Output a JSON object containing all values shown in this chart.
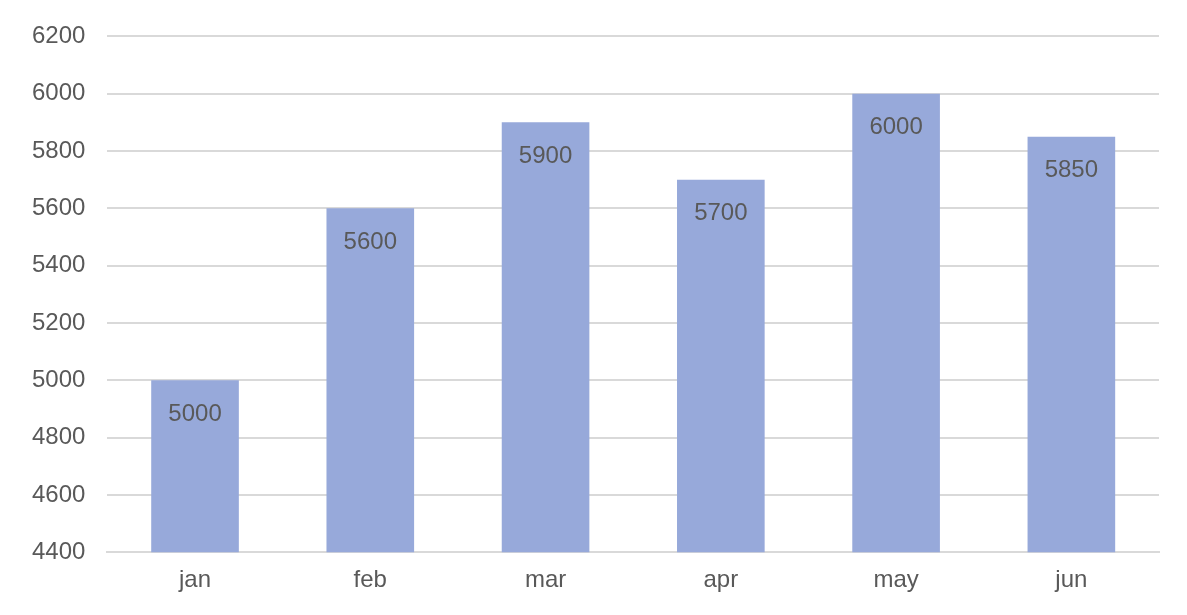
{
  "chart_data": {
    "type": "bar",
    "categories": [
      "jan",
      "feb",
      "mar",
      "apr",
      "may",
      "jun"
    ],
    "values": [
      5000,
      5600,
      5900,
      5700,
      6000,
      5850
    ],
    "color": "#97a9da",
    "ylim": [
      4400,
      6200
    ],
    "yticks": [
      4400,
      4600,
      4800,
      5000,
      5200,
      5400,
      5600,
      5800,
      6000,
      6200
    ],
    "grid": "y",
    "data_labels": true,
    "legend": false
  }
}
